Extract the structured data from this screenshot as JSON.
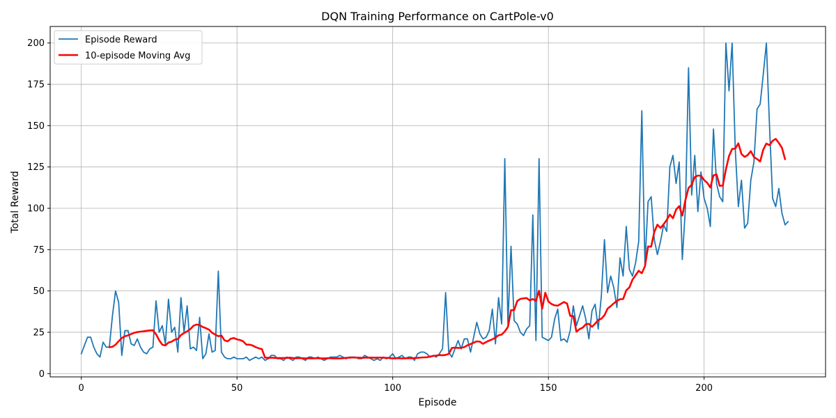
{
  "chart_data": {
    "type": "line",
    "title": "DQN Training Performance on CartPole-v0",
    "xlabel": "Episode",
    "ylabel": "Total Reward",
    "xlim": [
      -10,
      239
    ],
    "ylim": [
      -2,
      210
    ],
    "xticks": [
      0,
      50,
      100,
      150,
      200
    ],
    "yticks": [
      0,
      25,
      50,
      75,
      100,
      125,
      150,
      175,
      200
    ],
    "grid": true,
    "legend_position": "upper-left",
    "colors": {
      "reward": "#1f77b4",
      "moving_avg": "#ff0000"
    },
    "series": [
      {
        "name": "Episode Reward",
        "x_start": 0,
        "values": [
          12,
          17,
          22,
          22,
          16,
          12,
          10,
          19,
          16,
          16,
          35,
          50,
          43,
          11,
          26,
          26,
          18,
          17,
          21,
          16,
          13,
          12,
          15,
          16,
          44,
          25,
          29,
          18,
          45,
          25,
          28,
          13,
          46,
          25,
          41,
          15,
          16,
          14,
          34,
          9,
          12,
          24,
          13,
          14,
          62,
          13,
          10,
          9,
          9,
          10,
          9,
          9,
          9,
          10,
          8,
          9,
          10,
          9,
          10,
          8,
          9,
          11,
          11,
          9,
          9,
          8,
          10,
          9,
          8,
          10,
          10,
          9,
          8,
          10,
          10,
          9,
          10,
          9,
          8,
          9,
          10,
          10,
          10,
          11,
          10,
          9,
          10,
          10,
          10,
          9,
          9,
          11,
          10,
          9,
          8,
          9,
          8,
          10,
          9,
          10,
          12,
          9,
          10,
          11,
          9,
          10,
          10,
          8,
          12,
          13,
          13,
          12,
          10,
          11,
          10,
          12,
          15,
          49,
          13,
          10,
          15,
          20,
          15,
          21,
          21,
          13,
          22,
          31,
          24,
          21,
          22,
          26,
          39,
          18,
          46,
          30,
          130,
          30,
          77,
          32,
          30,
          25,
          23,
          27,
          29,
          96,
          20,
          130,
          22,
          21,
          20,
          22,
          33,
          39,
          20,
          21,
          19,
          26,
          41,
          29,
          35,
          41,
          33,
          21,
          38,
          42,
          27,
          47,
          81,
          49,
          59,
          52,
          40,
          70,
          59,
          89,
          63,
          59,
          67,
          80,
          159,
          66,
          104,
          107,
          81,
          72,
          80,
          90,
          86,
          125,
          132,
          115,
          128,
          69,
          100,
          185,
          108,
          132,
          98,
          122,
          106,
          100,
          89,
          148,
          115,
          107,
          104,
          200,
          171,
          200,
          136,
          101,
          117,
          88,
          91,
          117,
          128,
          160,
          163,
          181,
          200,
          150,
          106,
          101,
          112,
          97,
          90,
          92
        ]
      },
      {
        "name": "10-episode Moving Avg",
        "x_start": 9,
        "values": [
          16,
          16.2,
          17.5,
          19.6,
          21.5,
          22.6,
          23.1,
          23.9,
          24.7,
          25.1,
          25.4,
          25.6,
          25.9,
          26.1,
          26.2,
          23.8,
          20.2,
          17.5,
          17.0,
          18.8,
          19.3,
          20.5,
          20.9,
          23.3,
          24.5,
          25.6,
          26.9,
          28.9,
          29.7,
          29.3,
          28.2,
          27.5,
          26.6,
          24.7,
          23.6,
          22.6,
          23.0,
          20.1,
          19.5,
          21.1,
          21.5,
          20.7,
          20.3,
          19.5,
          17.5,
          17.5,
          17.0,
          16.0,
          15.3,
          14.8,
          9.7,
          9.5,
          9.6,
          9.5,
          9.4,
          9.4,
          9.4,
          9.5,
          9.6,
          9.4,
          9.3,
          9.4,
          9.3,
          9.2,
          9.3,
          9.2,
          9.3,
          9.3,
          9.2,
          9.2,
          9.3,
          9.3,
          9.2,
          9.2,
          9.2,
          9.3,
          9.5,
          9.6,
          9.7,
          9.7,
          9.7,
          9.5,
          9.6,
          9.6,
          9.7,
          9.6,
          9.7,
          9.7,
          9.6,
          9.5,
          9.4,
          9.2,
          9.3,
          9.3,
          9.2,
          9.3,
          9.3,
          9.3,
          9.4,
          9.5,
          9.7,
          9.8,
          9.9,
          10.3,
          10.7,
          10.9,
          11.2,
          11.1,
          11.3,
          11.9,
          15.5,
          15.7,
          15.5,
          15.6,
          16.0,
          17.1,
          17.9,
          18.7,
          19.5,
          19.3,
          18.0,
          19.1,
          20.0,
          20.7,
          21.8,
          23.2,
          23.6,
          25.5,
          28.2,
          38.4,
          38.4,
          43.9,
          45.2,
          45.5,
          45.7,
          44.3,
          45.1,
          44.0,
          50.1,
          39.3,
          48.9,
          43.6,
          42.1,
          41.3,
          41.1,
          42.2,
          43.3,
          42.4,
          34.9,
          34.8,
          25.3,
          26.9,
          27.8,
          29.8,
          30.1,
          28.3,
          30.2,
          32.4,
          33.2,
          35.3,
          39.3,
          40.8,
          42.5,
          44.0,
          45.0,
          45.1,
          50.4,
          52.1,
          56.8,
          59.5,
          62.2,
          60.7,
          64.9,
          76.9,
          76.8,
          85.6,
          90.1,
          88.1,
          90.3,
          93.0,
          96.2,
          94.0,
          99.2,
          101.3,
          95.6,
          105.0,
          112.3,
          114.2,
          118.9,
          119.8,
          119.7,
          117.1,
          115.4,
          112.6,
          119.9,
          120.5,
          113.6,
          113.7,
          123.5,
          131.6,
          135.9,
          136.1,
          139.3,
          132.8,
          131.1,
          132.2,
          134.6,
          131.0,
          129.8,
          128.3,
          135.5,
          139.2,
          138.2,
          140.8,
          142.0,
          139.5,
          136.6,
          129.7
        ]
      }
    ]
  }
}
